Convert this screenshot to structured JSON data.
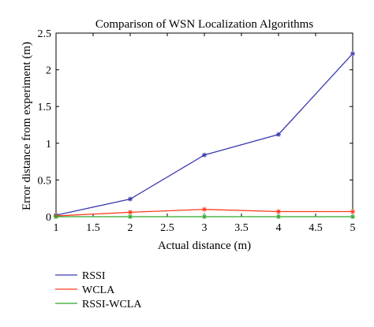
{
  "chart_data": {
    "type": "line",
    "title": "Comparison of WSN Localization Algorithms",
    "xlabel": "Actual distance (m)",
    "ylabel": "Error distance from experiment (m)",
    "xlim": [
      1,
      5
    ],
    "ylim": [
      0,
      2.5
    ],
    "xticks": [
      "1",
      "1.5",
      "2",
      "2.5",
      "3",
      "3.5",
      "4",
      "4.5",
      "5"
    ],
    "yticks": [
      "0",
      "0.5",
      "1",
      "1.5",
      "2",
      "2.5"
    ],
    "grid": false,
    "legend_position": "bottom-left-outside",
    "x": [
      1,
      2,
      3,
      4,
      5
    ],
    "series": [
      {
        "name": "RSSI",
        "color": "#3b3bb0",
        "values": [
          0.02,
          0.24,
          0.84,
          1.12,
          2.22
        ]
      },
      {
        "name": "WCLA",
        "color": "#ff3b1f",
        "values": [
          0.01,
          0.06,
          0.1,
          0.07,
          0.07
        ]
      },
      {
        "name": "RSSI-WCLA",
        "color": "#2fa82f",
        "values": [
          0.0,
          0.0,
          0.0,
          0.0,
          0.0
        ]
      }
    ]
  }
}
